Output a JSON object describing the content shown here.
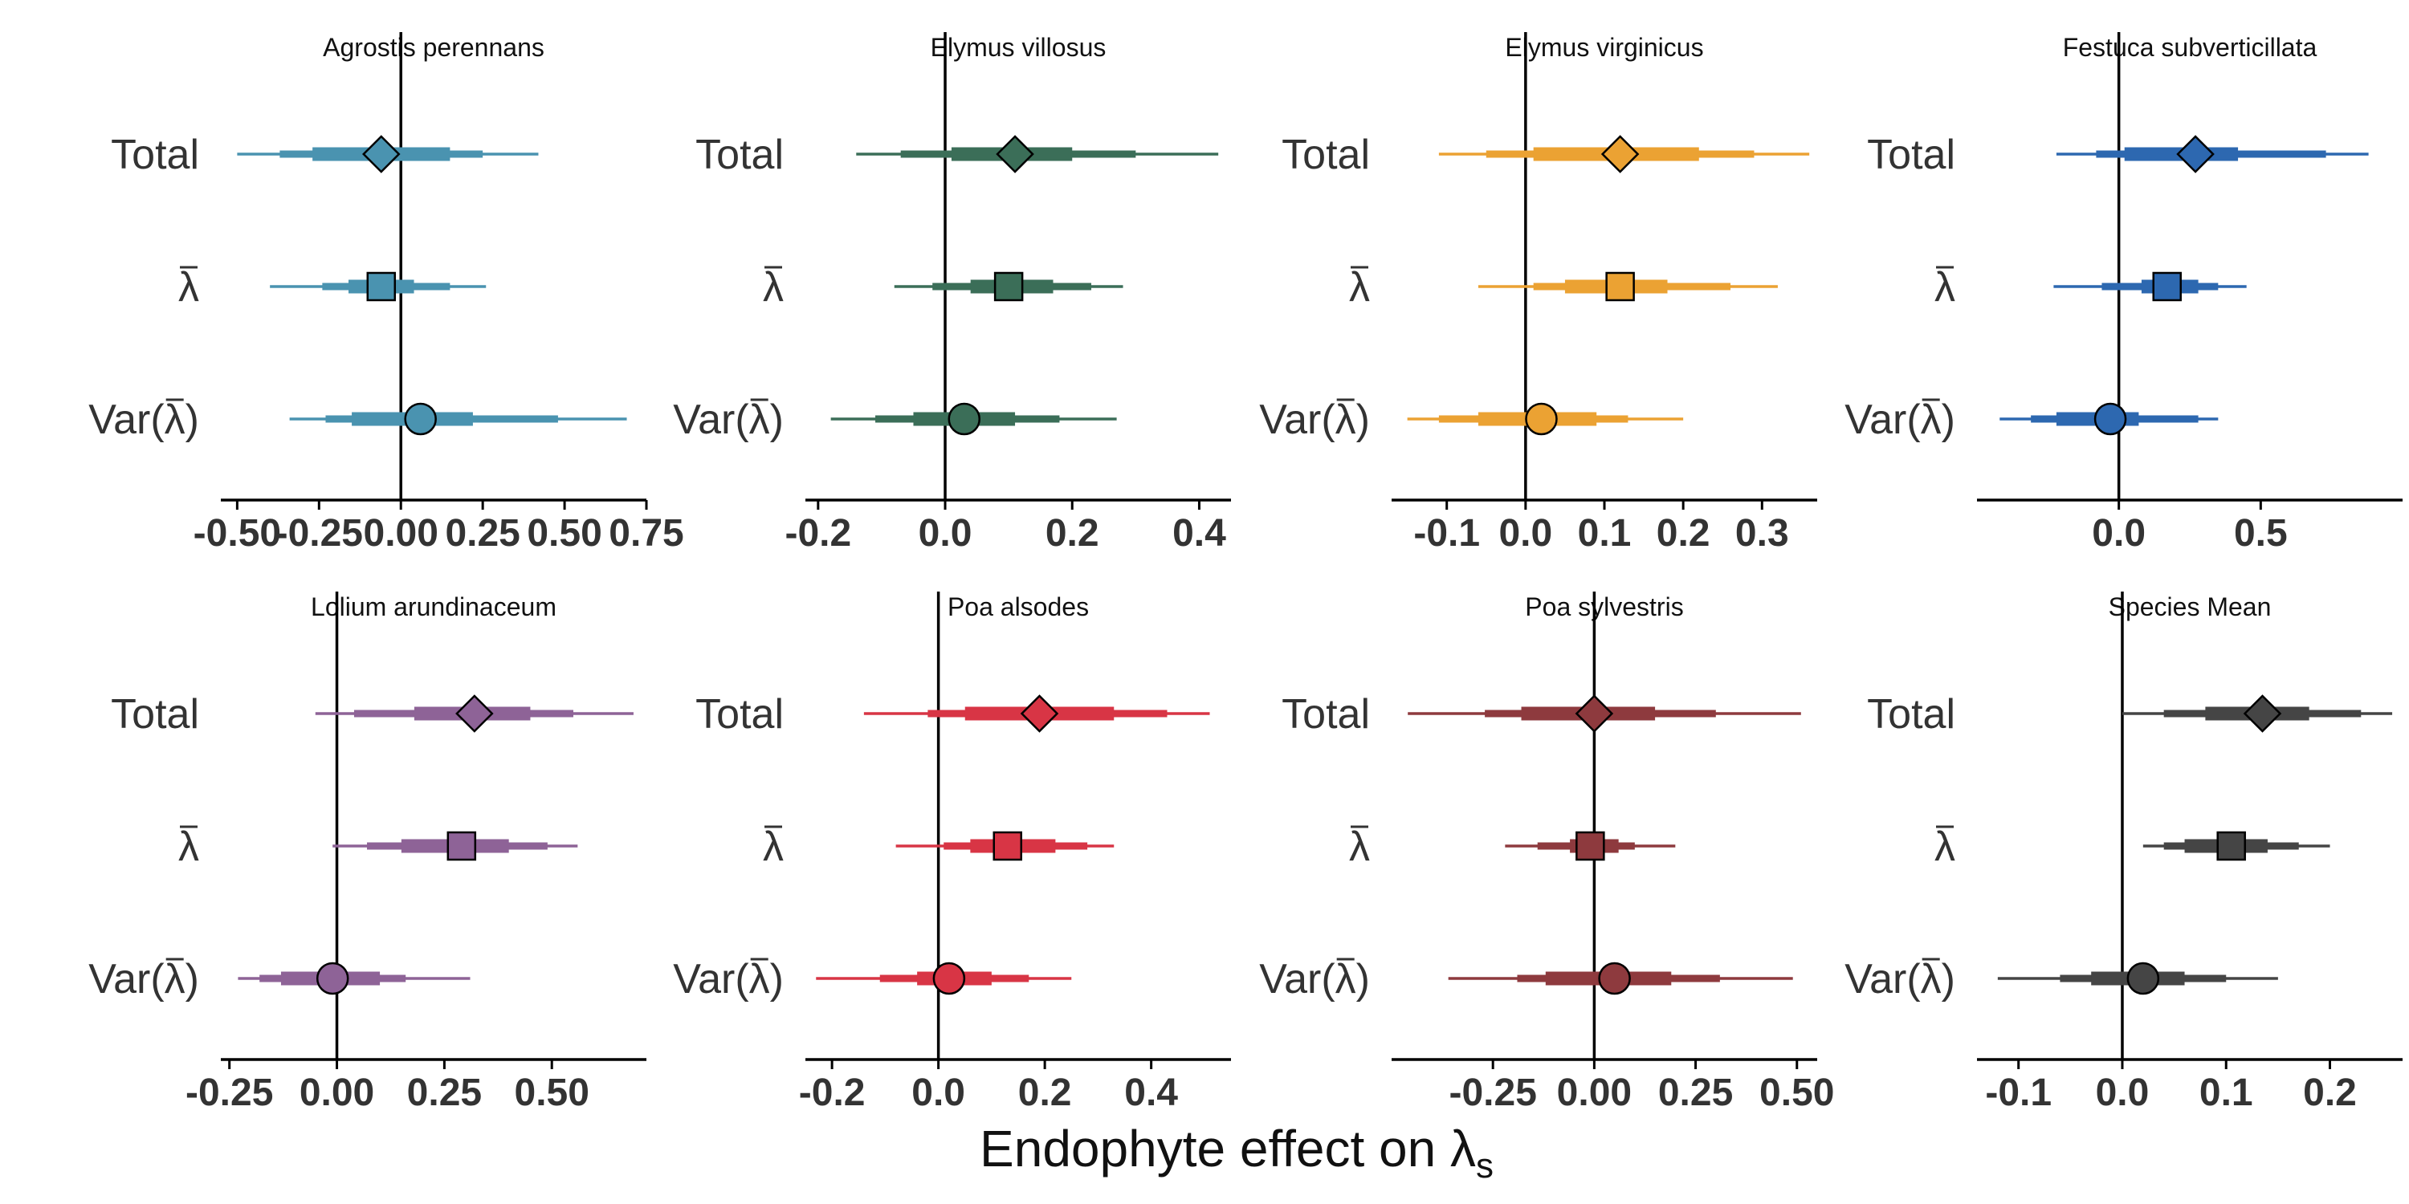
{
  "chart_data": {
    "type": "forest",
    "xlabel": "Endophyte effect on λ",
    "xlabel_subscript": "s",
    "row_labels": [
      "Total",
      "λ",
      "Var(λ)"
    ],
    "row_overbar": [
      false,
      true,
      true
    ],
    "row_markers": [
      "diamond",
      "square",
      "circle"
    ],
    "panels": [
      {
        "title": "Agrostis perennans",
        "color": "#4a93b0",
        "xlim": [
          -0.55,
          0.75
        ],
        "ticks": [
          -0.5,
          -0.25,
          0,
          0.25,
          0.5,
          0.75
        ],
        "tick_labels": [
          "-0.50",
          "-0.25",
          "0.00",
          "0.25",
          "0.50",
          "0.75"
        ],
        "rows": [
          {
            "mean": -0.06,
            "q50": [
              -0.27,
              0.15
            ],
            "q80": [
              -0.37,
              0.25
            ],
            "q95": [
              -0.5,
              0.42
            ]
          },
          {
            "mean": -0.06,
            "q50": [
              -0.16,
              0.04
            ],
            "q80": [
              -0.24,
              0.15
            ],
            "q95": [
              -0.4,
              0.26
            ]
          },
          {
            "mean": 0.06,
            "q50": [
              -0.15,
              0.22
            ],
            "q80": [
              -0.23,
              0.48
            ],
            "q95": [
              -0.34,
              0.69
            ]
          }
        ]
      },
      {
        "title": "Elymus villosus",
        "color": "#3b6e58",
        "xlim": [
          -0.22,
          0.45
        ],
        "ticks": [
          -0.2,
          0,
          0.2,
          0.4
        ],
        "tick_labels": [
          "-0.2",
          "0.0",
          "0.2",
          "0.4"
        ],
        "rows": [
          {
            "mean": 0.11,
            "q50": [
              0.01,
              0.2
            ],
            "q80": [
              -0.07,
              0.3
            ],
            "q95": [
              -0.14,
              0.43
            ]
          },
          {
            "mean": 0.1,
            "q50": [
              0.04,
              0.17
            ],
            "q80": [
              -0.02,
              0.23
            ],
            "q95": [
              -0.08,
              0.28
            ]
          },
          {
            "mean": 0.03,
            "q50": [
              -0.05,
              0.11
            ],
            "q80": [
              -0.11,
              0.18
            ],
            "q95": [
              -0.18,
              0.27
            ]
          }
        ]
      },
      {
        "title": "Elymus virginicus",
        "color": "#eba233",
        "xlim": [
          -0.17,
          0.37
        ],
        "ticks": [
          -0.1,
          0,
          0.1,
          0.2,
          0.3
        ],
        "tick_labels": [
          "-0.1",
          "0.0",
          "0.1",
          "0.2",
          "0.3"
        ],
        "rows": [
          {
            "mean": 0.12,
            "q50": [
              0.01,
              0.22
            ],
            "q80": [
              -0.05,
              0.29
            ],
            "q95": [
              -0.11,
              0.36
            ]
          },
          {
            "mean": 0.12,
            "q50": [
              0.05,
              0.18
            ],
            "q80": [
              0.01,
              0.26
            ],
            "q95": [
              -0.06,
              0.32
            ]
          },
          {
            "mean": 0.02,
            "q50": [
              -0.06,
              0.09
            ],
            "q80": [
              -0.11,
              0.13
            ],
            "q95": [
              -0.15,
              0.2
            ]
          }
        ]
      },
      {
        "title": "Festuca subverticillata",
        "color": "#2d68b0",
        "xlim": [
          -0.5,
          1.0
        ],
        "ticks": [
          0,
          0.5
        ],
        "tick_labels": [
          "0.0",
          "0.5"
        ],
        "rows": [
          {
            "mean": 0.27,
            "q50": [
              0.02,
              0.42
            ],
            "q80": [
              -0.08,
              0.73
            ],
            "q95": [
              -0.22,
              0.88
            ]
          },
          {
            "mean": 0.17,
            "q50": [
              0.08,
              0.28
            ],
            "q80": [
              -0.06,
              0.35
            ],
            "q95": [
              -0.23,
              0.45
            ]
          },
          {
            "mean": -0.03,
            "q50": [
              -0.22,
              0.07
            ],
            "q80": [
              -0.31,
              0.28
            ],
            "q95": [
              -0.42,
              0.35
            ]
          }
        ]
      },
      {
        "title": "Lolium arundinaceum",
        "color": "#8e6397",
        "xlim": [
          -0.27,
          0.72
        ],
        "ticks": [
          -0.25,
          0,
          0.25,
          0.5
        ],
        "tick_labels": [
          "-0.25",
          "0.00",
          "0.25",
          "0.50"
        ],
        "rows": [
          {
            "mean": 0.32,
            "q50": [
              0.18,
              0.45
            ],
            "q80": [
              0.04,
              0.55
            ],
            "q95": [
              -0.05,
              0.69
            ]
          },
          {
            "mean": 0.29,
            "q50": [
              0.15,
              0.4
            ],
            "q80": [
              0.07,
              0.49
            ],
            "q95": [
              -0.01,
              0.56
            ]
          },
          {
            "mean": -0.01,
            "q50": [
              -0.13,
              0.1
            ],
            "q80": [
              -0.18,
              0.16
            ],
            "q95": [
              -0.23,
              0.31
            ]
          }
        ]
      },
      {
        "title": "Poa alsodes",
        "color": "#d83545",
        "xlim": [
          -0.25,
          0.55
        ],
        "ticks": [
          -0.2,
          0,
          0.2,
          0.4
        ],
        "tick_labels": [
          "-0.2",
          "0.0",
          "0.2",
          "0.4"
        ],
        "rows": [
          {
            "mean": 0.19,
            "q50": [
              0.05,
              0.33
            ],
            "q80": [
              -0.02,
              0.43
            ],
            "q95": [
              -0.14,
              0.51
            ]
          },
          {
            "mean": 0.13,
            "q50": [
              0.06,
              0.22
            ],
            "q80": [
              0.01,
              0.28
            ],
            "q95": [
              -0.08,
              0.33
            ]
          },
          {
            "mean": 0.02,
            "q50": [
              -0.04,
              0.1
            ],
            "q80": [
              -0.11,
              0.17
            ],
            "q95": [
              -0.23,
              0.25
            ]
          }
        ]
      },
      {
        "title": "Poa sylvestris",
        "color": "#8e3a3e",
        "xlim": [
          -0.5,
          0.55
        ],
        "ticks": [
          -0.25,
          0,
          0.25,
          0.5
        ],
        "tick_labels": [
          "-0.25",
          "0.00",
          "0.25",
          "0.50"
        ],
        "rows": [
          {
            "mean": 0.0,
            "q50": [
              -0.18,
              0.15
            ],
            "q80": [
              -0.27,
              0.3
            ],
            "q95": [
              -0.46,
              0.51
            ]
          },
          {
            "mean": -0.01,
            "q50": [
              -0.06,
              0.06
            ],
            "q80": [
              -0.14,
              0.1
            ],
            "q95": [
              -0.22,
              0.2
            ]
          },
          {
            "mean": 0.05,
            "q50": [
              -0.12,
              0.19
            ],
            "q80": [
              -0.19,
              0.31
            ],
            "q95": [
              -0.36,
              0.49
            ]
          }
        ]
      },
      {
        "title": "Species Mean",
        "color": "#454545",
        "xlim": [
          -0.14,
          0.27
        ],
        "ticks": [
          -0.1,
          0,
          0.1,
          0.2
        ],
        "tick_labels": [
          "-0.1",
          "0.0",
          "0.1",
          "0.2"
        ],
        "rows": [
          {
            "mean": 0.135,
            "q50": [
              0.08,
              0.18
            ],
            "q80": [
              0.04,
              0.23
            ],
            "q95": [
              0.0,
              0.26
            ]
          },
          {
            "mean": 0.105,
            "q50": [
              0.06,
              0.14
            ],
            "q80": [
              0.04,
              0.17
            ],
            "q95": [
              0.02,
              0.2
            ]
          },
          {
            "mean": 0.02,
            "q50": [
              -0.03,
              0.06
            ],
            "q80": [
              -0.06,
              0.1
            ],
            "q95": [
              -0.12,
              0.15
            ]
          }
        ]
      }
    ]
  }
}
